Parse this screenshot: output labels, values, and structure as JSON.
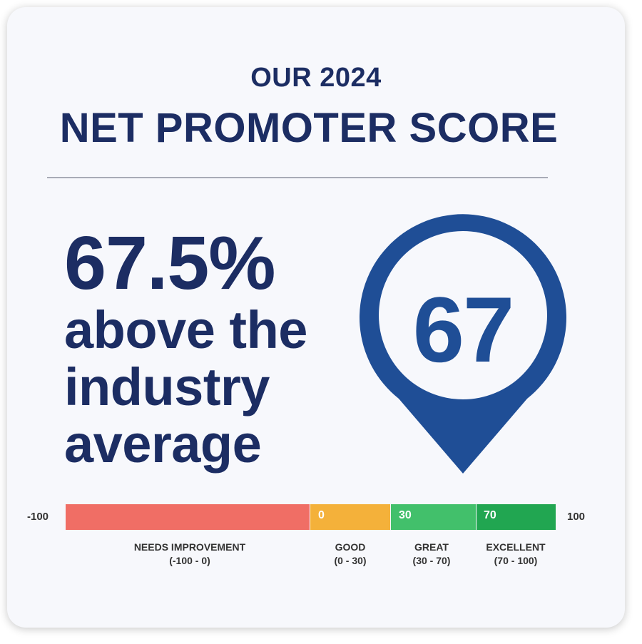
{
  "header": {
    "subtitle": "OUR 2024",
    "title": "NET PROMOTER SCORE"
  },
  "stat": {
    "percent": "67.5%",
    "line1": "above the",
    "line2": "industry",
    "line3": "average"
  },
  "score": {
    "value": "67",
    "color": "#1f4e96"
  },
  "scale": {
    "min_label": "-100",
    "max_label": "100",
    "segments": [
      {
        "color": "#f06e65",
        "start_label": "",
        "name": "NEEDS IMPROVEMENT",
        "range": "(-100 - 0)"
      },
      {
        "color": "#f4b13a",
        "start_label": "0",
        "name": "GOOD",
        "range": "(0 - 30)"
      },
      {
        "color": "#42c06b",
        "start_label": "30",
        "name": "GREAT",
        "range": "(30 - 70)"
      },
      {
        "color": "#21a651",
        "start_label": "70",
        "name": "EXCELLENT",
        "range": "(70 - 100)"
      }
    ]
  },
  "colors": {
    "title": "#1c2d63",
    "card_bg": "#f7f8fc"
  }
}
